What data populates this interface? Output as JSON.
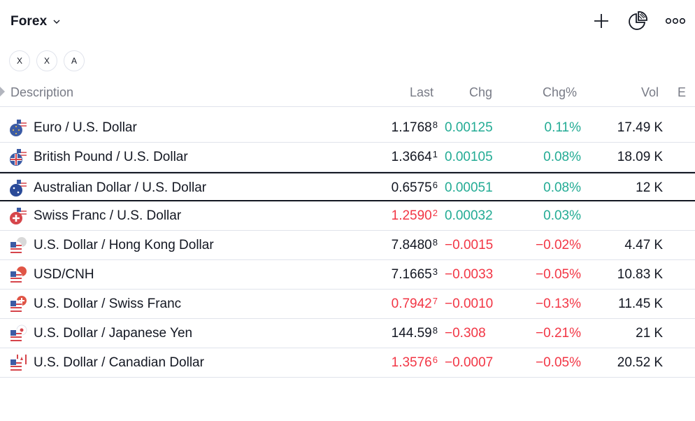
{
  "header": {
    "title": "Forex",
    "icons": [
      "chevron-down-icon",
      "plus-icon",
      "pie-chart-icon",
      "more-icon"
    ]
  },
  "chips": [
    "X",
    "X",
    "A"
  ],
  "columns": {
    "description": "Description",
    "last": "Last",
    "chg": "Chg",
    "chg_pct": "Chg%",
    "vol": "Vol",
    "extra": "E"
  },
  "colors": {
    "positive": "#22ab94",
    "negative": "#f23645",
    "neutral": "#131722",
    "muted": "#787b86",
    "border": "#e0e3eb"
  },
  "rows": [
    {
      "desc": "Euro / U.S. Dollar",
      "flag": "eu-us-flag-icon",
      "last_main": "1.1768",
      "last_sup": "8",
      "last_color": "neu",
      "chg": "0.00125",
      "chg_color": "pos",
      "chg_pct": "0.11%",
      "pct_color": "pos",
      "vol": "17.49",
      "vol_unit": "K",
      "selected": false
    },
    {
      "desc": "British Pound / U.S. Dollar",
      "flag": "gb-us-flag-icon",
      "last_main": "1.3664",
      "last_sup": "1",
      "last_color": "neu",
      "chg": "0.00105",
      "chg_color": "pos",
      "chg_pct": "0.08%",
      "pct_color": "pos",
      "vol": "18.09",
      "vol_unit": "K",
      "selected": false
    },
    {
      "desc": "Australian Dollar / U.S. Dollar",
      "flag": "au-us-flag-icon",
      "last_main": "0.6575",
      "last_sup": "6",
      "last_color": "neu",
      "chg": "0.00051",
      "chg_color": "pos",
      "chg_pct": "0.08%",
      "pct_color": "pos",
      "vol": "12",
      "vol_unit": "K",
      "selected": true
    },
    {
      "desc": "Swiss Franc / U.S. Dollar",
      "flag": "ch-us-flag-icon",
      "last_main": "1.2590",
      "last_sup": "2",
      "last_color": "neg",
      "chg": "0.00032",
      "chg_color": "pos",
      "chg_pct": "0.03%",
      "pct_color": "pos",
      "vol": "",
      "vol_unit": "",
      "selected": false
    },
    {
      "desc": "U.S. Dollar / Hong Kong Dollar",
      "flag": "us-hk-flag-icon",
      "last_main": "7.8480",
      "last_sup": "8",
      "last_color": "neu",
      "chg": "−0.0015",
      "chg_color": "neg",
      "chg_pct": "−0.02%",
      "pct_color": "neg",
      "vol": "4.47",
      "vol_unit": "K",
      "selected": false
    },
    {
      "desc": "USD/CNH",
      "flag": "us-cn-flag-icon",
      "last_main": "7.1665",
      "last_sup": "3",
      "last_color": "neu",
      "chg": "−0.0033",
      "chg_color": "neg",
      "chg_pct": "−0.05%",
      "pct_color": "neg",
      "vol": "10.83",
      "vol_unit": "K",
      "selected": false
    },
    {
      "desc": "U.S. Dollar / Swiss Franc",
      "flag": "us-ch-flag-icon",
      "last_main": "0.7942",
      "last_sup": "7",
      "last_color": "neg",
      "chg": "−0.0010",
      "chg_color": "neg",
      "chg_pct": "−0.13%",
      "pct_color": "neg",
      "vol": "11.45",
      "vol_unit": "K",
      "selected": false
    },
    {
      "desc": "U.S. Dollar / Japanese Yen",
      "flag": "us-jp-flag-icon",
      "last_main": "144.59",
      "last_sup": "8",
      "last_color": "neu",
      "chg": "−0.308",
      "chg_color": "neg",
      "chg_pct": "−0.21%",
      "pct_color": "neg",
      "vol": "21",
      "vol_unit": "K",
      "selected": false
    },
    {
      "desc": "U.S. Dollar / Canadian Dollar",
      "flag": "us-ca-flag-icon",
      "last_main": "1.3576",
      "last_sup": "6",
      "last_color": "neg",
      "chg": "−0.0007",
      "chg_color": "neg",
      "chg_pct": "−0.05%",
      "pct_color": "neg",
      "vol": "20.52",
      "vol_unit": "K",
      "selected": false
    }
  ]
}
